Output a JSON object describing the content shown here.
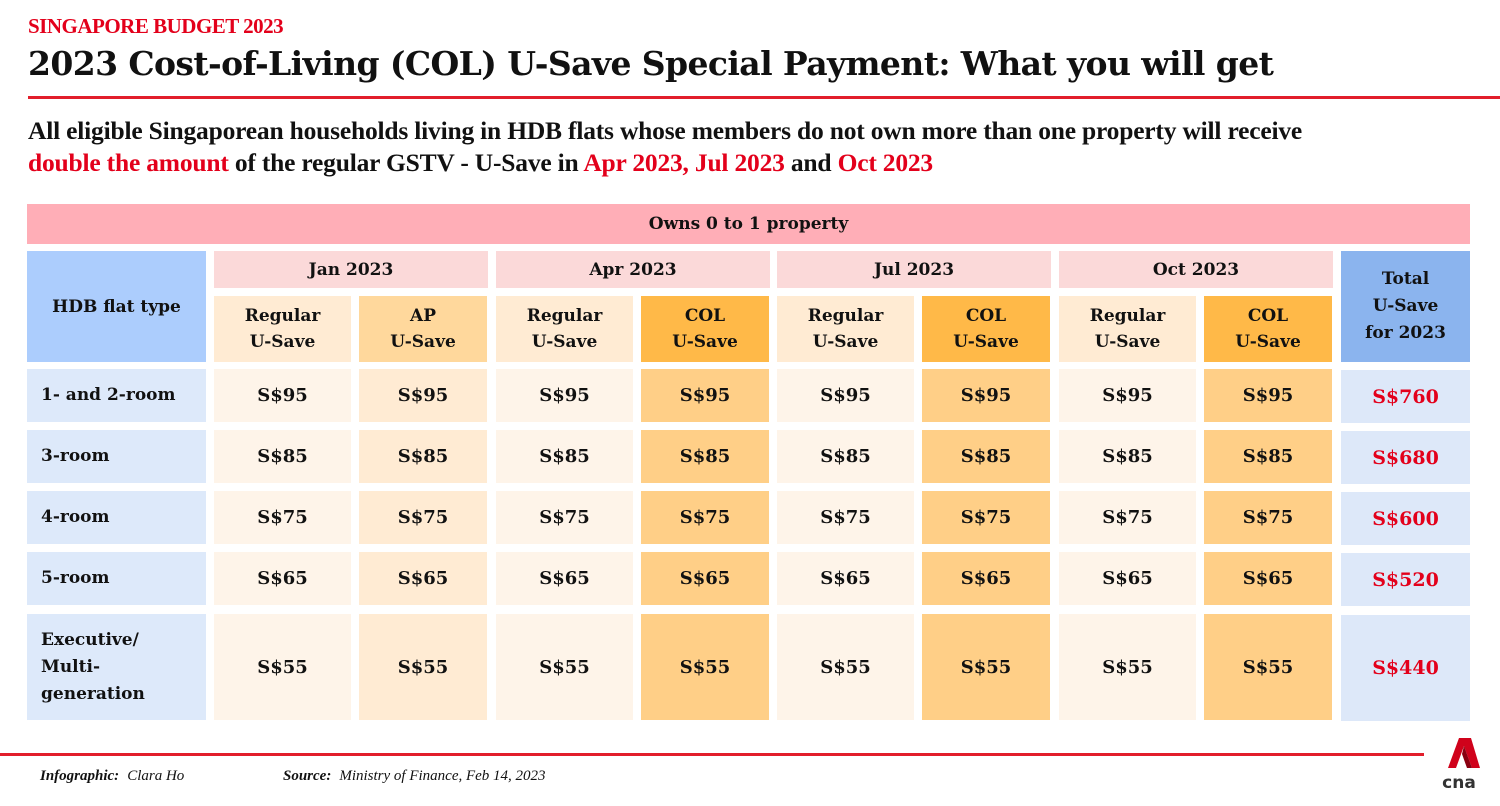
{
  "header": {
    "kicker": "SINGAPORE BUDGET 2023",
    "title": "2023 Cost-of-Living (COL) U-Save Special Payment: What you will get"
  },
  "subtitle": {
    "line1": "All eligible Singaporean households living in HDB flats whose members do not own more than one property will receive",
    "highlight1": "double the amount",
    "mid": " of the regular GSTV - U-Save in ",
    "highlight2": "Apr 2023, Jul 2023",
    "and": " and ",
    "highlight3": "Oct 2023"
  },
  "colors": {
    "accent_red": "#e3001b",
    "banner_pink": "#ffaeb7",
    "month_pink": "#fbd9d9",
    "flat_header_blue": "#accdfd",
    "total_header_blue": "#8bb4ee",
    "regular_cream": "#ffebd3",
    "ap_orange": "#ffd89c",
    "col_orange": "#ffb948"
  },
  "table": {
    "banner": "Owns 0 to 1 property",
    "flat_type_header": "HDB flat type",
    "total_header": [
      "Total",
      "U-Save",
      "for 2023"
    ],
    "months": [
      {
        "label": "Jan 2023",
        "sub": [
          [
            "Regular",
            "U-Save"
          ],
          [
            "AP",
            "U-Save"
          ]
        ]
      },
      {
        "label": "Apr 2023",
        "sub": [
          [
            "Regular",
            "U-Save"
          ],
          [
            "COL",
            "U-Save"
          ]
        ]
      },
      {
        "label": "Jul 2023",
        "sub": [
          [
            "Regular",
            "U-Save"
          ],
          [
            "COL",
            "U-Save"
          ]
        ]
      },
      {
        "label": "Oct 2023",
        "sub": [
          [
            "Regular",
            "U-Save"
          ],
          [
            "COL",
            "U-Save"
          ]
        ]
      }
    ],
    "rows": [
      {
        "flat_type": [
          "1- and 2-room"
        ],
        "values": [
          "S$95",
          "S$95",
          "S$95",
          "S$95",
          "S$95",
          "S$95",
          "S$95",
          "S$95"
        ],
        "total": "S$760"
      },
      {
        "flat_type": [
          "3-room"
        ],
        "values": [
          "S$85",
          "S$85",
          "S$85",
          "S$85",
          "S$85",
          "S$85",
          "S$85",
          "S$85"
        ],
        "total": "S$680"
      },
      {
        "flat_type": [
          "4-room"
        ],
        "values": [
          "S$75",
          "S$75",
          "S$75",
          "S$75",
          "S$75",
          "S$75",
          "S$75",
          "S$75"
        ],
        "total": "S$600"
      },
      {
        "flat_type": [
          "5-room"
        ],
        "values": [
          "S$65",
          "S$65",
          "S$65",
          "S$65",
          "S$65",
          "S$65",
          "S$65",
          "S$65"
        ],
        "total": "S$520"
      },
      {
        "flat_type": [
          "Executive/",
          "Multi-",
          "generation"
        ],
        "values": [
          "S$55",
          "S$55",
          "S$55",
          "S$55",
          "S$55",
          "S$55",
          "S$55",
          "S$55"
        ],
        "total": "S$440"
      }
    ]
  },
  "footer": {
    "infographic_label": "Infographic:",
    "infographic_value": "Clara Ho",
    "source_label": "Source:",
    "source_value": "Ministry of Finance, Feb 14, 2023",
    "logo_text": "cna"
  }
}
